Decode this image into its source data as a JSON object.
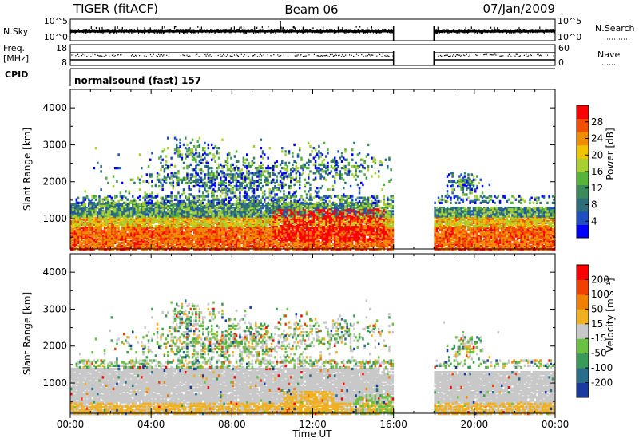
{
  "header": {
    "title": "TIGER (fitACF)",
    "beam": "Beam 06",
    "date": "07/Jan/2009"
  },
  "noise_panel": {
    "left_label": "N.Sky",
    "right_label": "N.Search",
    "left_ticks": [
      "10^5",
      "10^0"
    ],
    "right_ticks": [
      "10^5",
      "10^0"
    ]
  },
  "freq_panel": {
    "left_label_1": "Freq.",
    "left_label_2": "[MHz]",
    "right_label": "Nave",
    "left_ticks": [
      "18",
      "8"
    ],
    "right_ticks": [
      "60",
      "0"
    ]
  },
  "cpid_panel": {
    "label": "CPID",
    "text": "normalsound (fast) 157"
  },
  "power_panel": {
    "ylabel": "Slant Range [km]",
    "yticks": [
      "4000",
      "3000",
      "2000",
      "1000"
    ],
    "colorbar_label": "Power [dB]",
    "colorbar_ticks": [
      "28",
      "24",
      "20",
      "16",
      "12",
      "8",
      "4"
    ],
    "colors": [
      "#0000ff",
      "#1f4fc0",
      "#2e6e7a",
      "#3a8a5a",
      "#57b43a",
      "#a8d030",
      "#f0c400",
      "#f08c00",
      "#f05000",
      "#ff0000"
    ]
  },
  "velocity_panel": {
    "ylabel": "Slant Range [km]",
    "yticks": [
      "4000",
      "3000",
      "2000",
      "1000"
    ],
    "colorbar_label": "Velocity [m s⁻¹]",
    "colorbar_ticks": [
      "200",
      "100",
      "50",
      "15",
      "-15",
      "-50",
      "-100",
      "-200"
    ],
    "colors": [
      "#1a3aa0",
      "#2a6e8a",
      "#3a9a5a",
      "#6ac040",
      "#c8c8c8",
      "#f0b020",
      "#f08000",
      "#f04000",
      "#ff0000"
    ],
    "ground_scatter_color": "#c0c0c0"
  },
  "xaxis": {
    "label": "Time UT",
    "ticks": [
      "00:00",
      "04:00",
      "08:00",
      "12:00",
      "16:00",
      "20:00",
      "00:00"
    ]
  },
  "chart_data": {
    "type": "heatmap",
    "x_unit": "hours UT",
    "xlim": [
      0,
      24
    ],
    "ylim": [
      180,
      4500
    ],
    "data_gaps": [
      [
        16,
        18
      ]
    ],
    "power_scale": [
      0,
      32
    ],
    "velocity_scale": [
      -250,
      250
    ]
  }
}
